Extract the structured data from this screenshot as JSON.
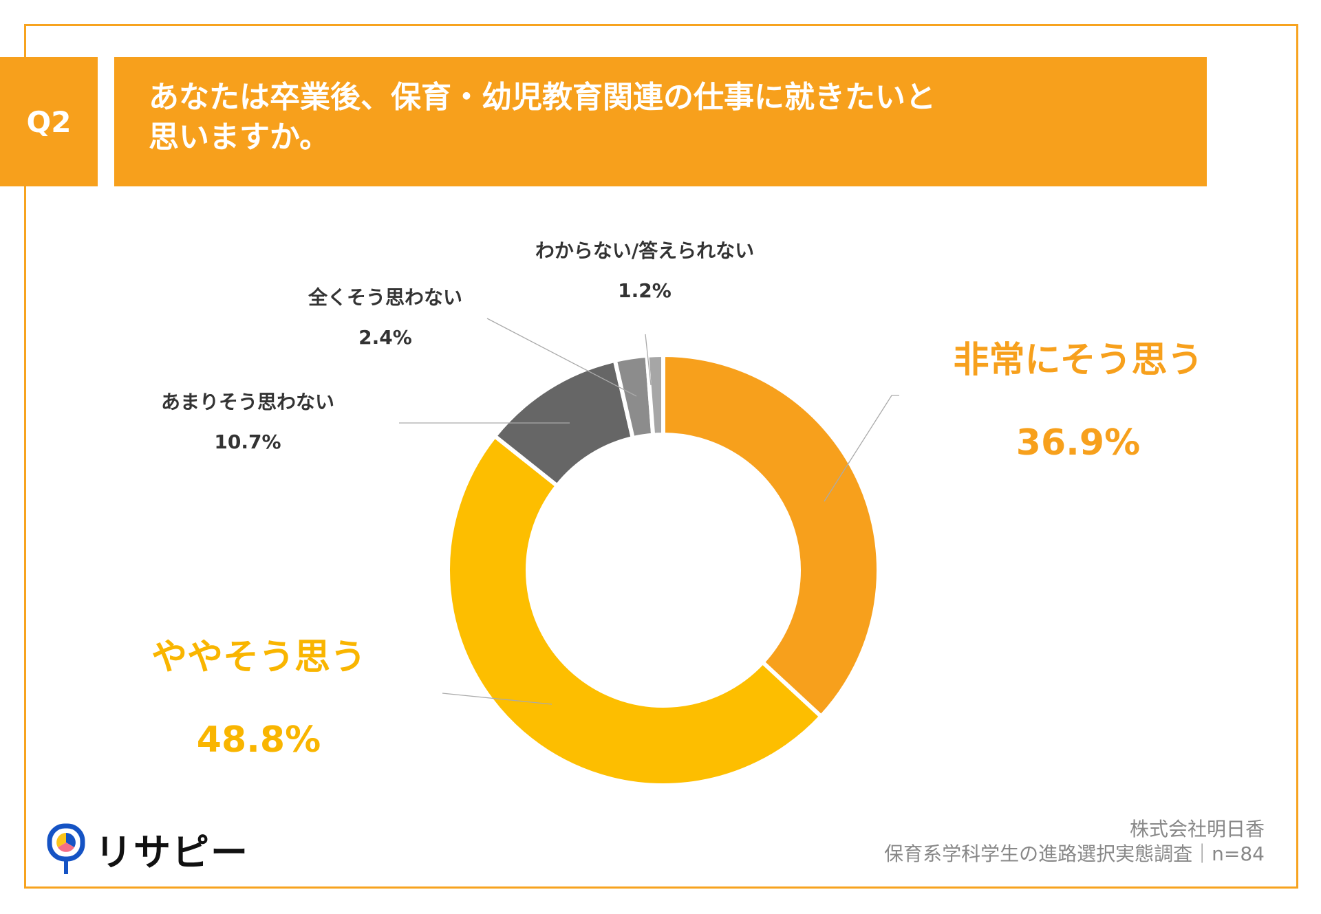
{
  "header": {
    "question_number": "Q2",
    "title_line1": "あなたは卒業後、保育・幼児教育関連の仕事に就きたいと",
    "title_line2": "思いますか。"
  },
  "chart_data": {
    "type": "pie",
    "donut": true,
    "title": "あなたは卒業後、保育・幼児教育関連の仕事に就きたいと思いますか。",
    "categories": [
      "非常にそう思う",
      "ややそう思う",
      "あまりそう思わない",
      "全くそう思わない",
      "わからない/答えられない"
    ],
    "values": [
      36.9,
      48.8,
      10.7,
      2.4,
      1.2
    ],
    "value_labels": [
      "36.9%",
      "48.8%",
      "10.7%",
      "2.4%",
      "1.2%"
    ],
    "colors": [
      "#F7A01C",
      "#FDBE00",
      "#666666",
      "#8C8C8C",
      "#A6A6A6"
    ],
    "label_colors": [
      "#F7A01C",
      "#F9B500",
      "#333333",
      "#333333",
      "#333333"
    ],
    "start": "top",
    "direction": "clockwise"
  },
  "footer": {
    "company": "株式会社明日香",
    "survey": "保育系学科学生の進路選択実態調査｜n=84"
  },
  "logo": {
    "text": "リサピー"
  }
}
